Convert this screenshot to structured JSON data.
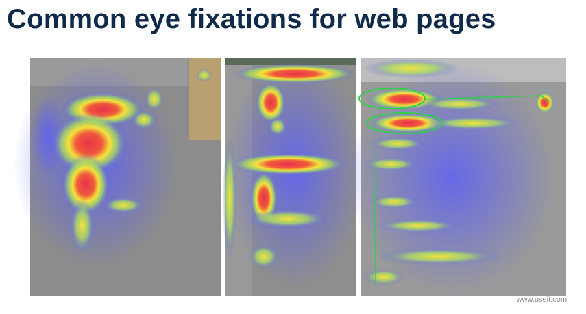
{
  "header": {
    "title": "Common eye fixations for web pages"
  },
  "footer": {
    "credit": "www.useit.com"
  }
}
